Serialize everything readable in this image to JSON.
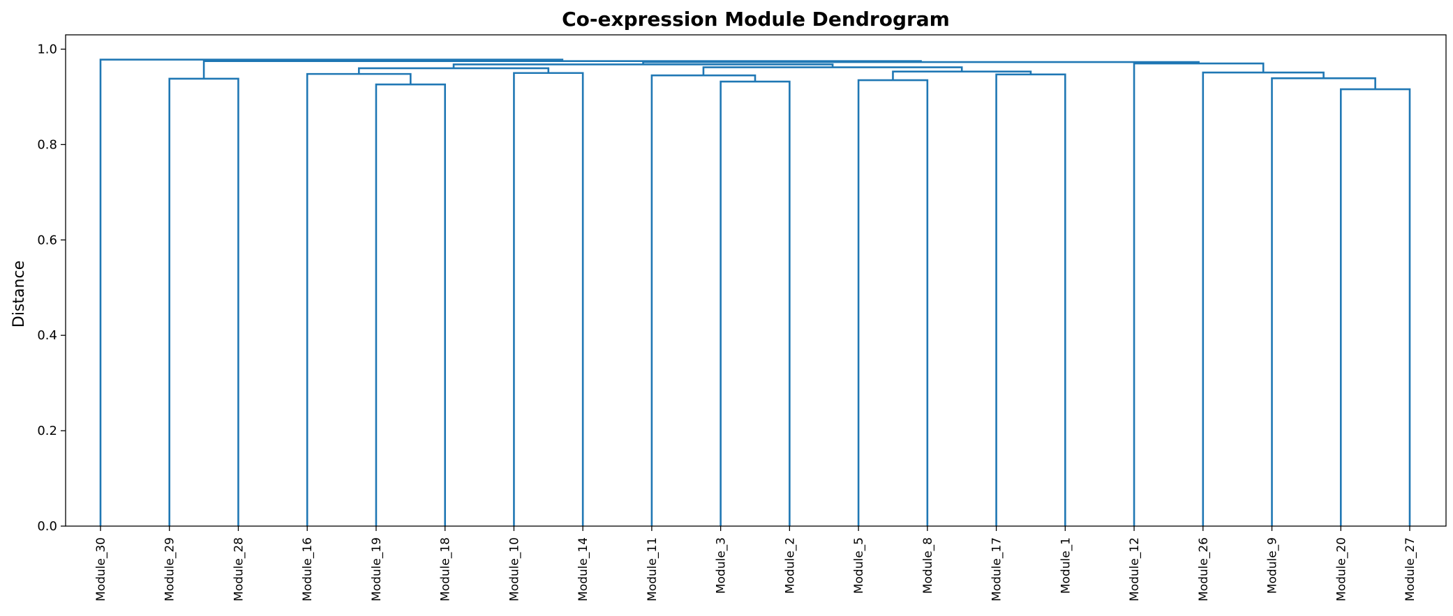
{
  "chart_data": {
    "type": "dendrogram",
    "title": "Co-expression Module Dendrogram",
    "xlabel": "",
    "ylabel": "Distance",
    "ylim": [
      0,
      1.03
    ],
    "yticks": [
      0.0,
      0.2,
      0.4,
      0.6,
      0.8,
      1.0
    ],
    "ytick_labels": [
      "0.0",
      "0.2",
      "0.4",
      "0.6",
      "0.8",
      "1.0"
    ],
    "grid": false,
    "link_color": "#1f77b4",
    "leaves": [
      "Module_30",
      "Module_29",
      "Module_28",
      "Module_16",
      "Module_19",
      "Module_18",
      "Module_10",
      "Module_14",
      "Module_11",
      "Module_3",
      "Module_2",
      "Module_5",
      "Module_8",
      "Module_17",
      "Module_1",
      "Module_12",
      "Module_26",
      "Module_9",
      "Module_20",
      "Module_27"
    ],
    "merges": [
      {
        "left": "Module_29",
        "right": "Module_28",
        "height": 0.938
      },
      {
        "left": "Module_19",
        "right": "Module_18",
        "height": 0.926
      },
      {
        "left": "Module_16",
        "right": "Module_19+Module_18",
        "height": 0.948
      },
      {
        "left": "Module_10",
        "right": "Module_14",
        "height": 0.95
      },
      {
        "left": "Module_16+Module_19+Module_18",
        "right": "Module_10+Module_14",
        "height": 0.96
      },
      {
        "left": "Module_3",
        "right": "Module_2",
        "height": 0.932
      },
      {
        "left": "Module_11",
        "right": "Module_3+Module_2",
        "height": 0.945
      },
      {
        "left": "Module_5",
        "right": "Module_8",
        "height": 0.935
      },
      {
        "left": "Module_17",
        "right": "Module_1",
        "height": 0.947
      },
      {
        "left": "Module_5+Module_8",
        "right": "Module_17+Module_1",
        "height": 0.953
      },
      {
        "left": "Module_11+Module_3+Module_2",
        "right": "Module_5+Module_8+Module_17+Module_1",
        "height": 0.962
      },
      {
        "left": "Module_16..Module_14",
        "right": "Module_11..Module_1",
        "height": 0.968
      },
      {
        "left": "Module_20",
        "right": "Module_27",
        "height": 0.916
      },
      {
        "left": "Module_9",
        "right": "Module_20+Module_27",
        "height": 0.939
      },
      {
        "left": "Module_26",
        "right": "Module_9+Module_20+Module_27",
        "height": 0.951
      },
      {
        "left": "Module_12",
        "right": "Module_26..Module_27",
        "height": 0.97
      },
      {
        "left": "Module_16..Module_1",
        "right": "Module_12..Module_27",
        "height": 0.973
      },
      {
        "left": "Module_29+Module_28",
        "right": "Module_16..Module_27",
        "height": 0.975
      },
      {
        "left": "Module_30",
        "right": "Module_29..Module_27",
        "height": 0.978
      }
    ]
  }
}
